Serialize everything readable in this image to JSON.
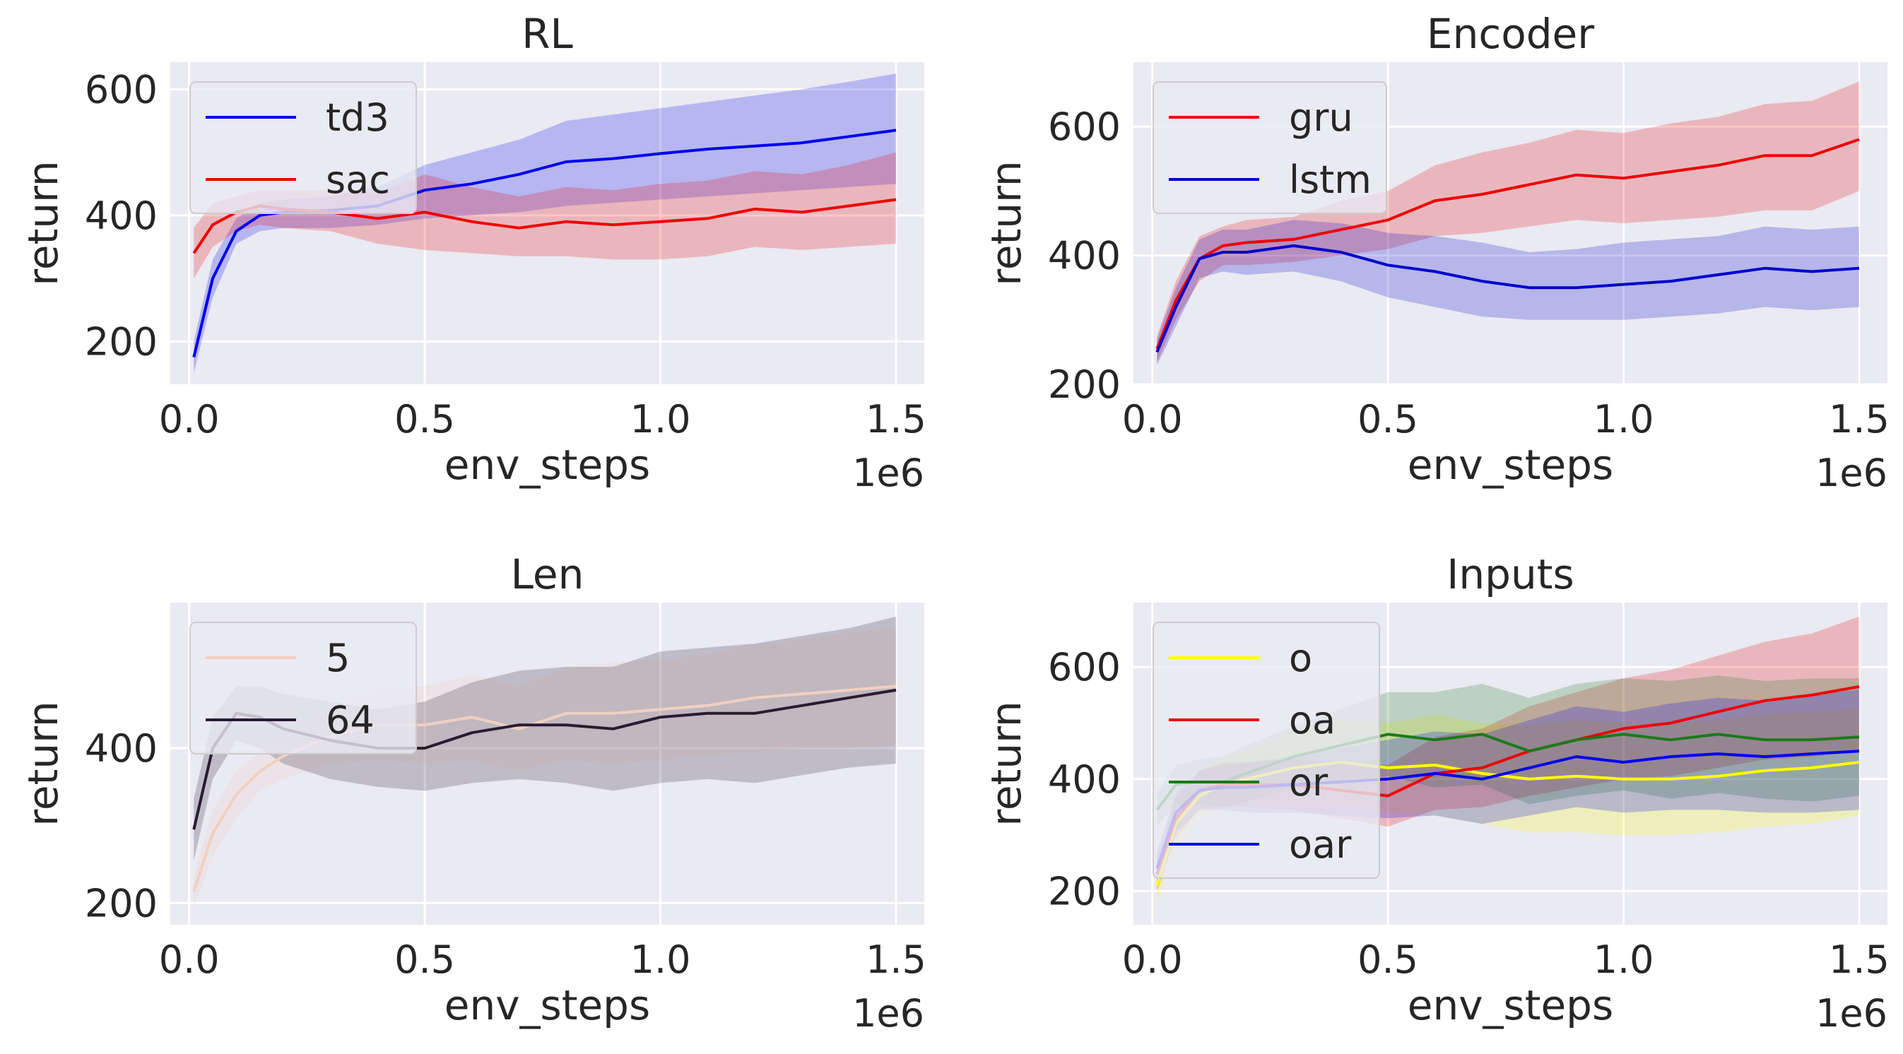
{
  "chart_data": [
    {
      "type": "line",
      "title": "RL",
      "xlabel": "env_steps",
      "ylabel": "return",
      "offset_label": "1e6",
      "xlim": [
        -0.04,
        1.56
      ],
      "ylim": [
        132,
        643
      ],
      "xticks": [
        0.0,
        0.5,
        1.0,
        1.5
      ],
      "xtick_labels": [
        "0.0",
        "0.5",
        "1.0",
        "1.5"
      ],
      "yticks": [
        200,
        400,
        600
      ],
      "ytick_labels": [
        "200",
        "400",
        "600"
      ],
      "legend_loc": "upper-left",
      "x": [
        0.01,
        0.05,
        0.1,
        0.15,
        0.2,
        0.3,
        0.4,
        0.5,
        0.6,
        0.7,
        0.8,
        0.9,
        1.0,
        1.1,
        1.2,
        1.3,
        1.4,
        1.5
      ],
      "series": [
        {
          "name": "td3",
          "color": "#0000ee",
          "values": [
            175,
            300,
            375,
            400,
            405,
            408,
            415,
            440,
            450,
            465,
            485,
            490,
            498,
            505,
            510,
            515,
            525,
            535
          ],
          "lower": [
            150,
            270,
            355,
            375,
            380,
            380,
            385,
            395,
            400,
            405,
            415,
            420,
            425,
            430,
            435,
            440,
            445,
            450
          ],
          "upper": [
            200,
            330,
            395,
            420,
            425,
            430,
            445,
            480,
            500,
            520,
            550,
            560,
            570,
            580,
            590,
            600,
            612,
            625
          ]
        },
        {
          "name": "sac",
          "color": "#ee0000",
          "values": [
            340,
            385,
            405,
            415,
            410,
            405,
            395,
            405,
            390,
            380,
            390,
            385,
            390,
            395,
            410,
            405,
            415,
            425
          ],
          "lower": [
            300,
            350,
            375,
            385,
            380,
            375,
            355,
            345,
            340,
            335,
            335,
            330,
            330,
            335,
            350,
            345,
            350,
            355
          ],
          "upper": [
            380,
            420,
            430,
            440,
            440,
            440,
            435,
            465,
            445,
            430,
            445,
            440,
            450,
            455,
            470,
            465,
            480,
            500
          ]
        }
      ]
    },
    {
      "type": "line",
      "title": "Encoder",
      "xlabel": "env_steps",
      "ylabel": "return",
      "offset_label": "1e6",
      "xlim": [
        -0.04,
        1.56
      ],
      "ylim": [
        200,
        700
      ],
      "xticks": [
        0.0,
        0.5,
        1.0,
        1.5
      ],
      "xtick_labels": [
        "0.0",
        "0.5",
        "1.0",
        "1.5"
      ],
      "yticks": [
        200,
        400,
        600
      ],
      "ytick_labels": [
        "200",
        "400",
        "600"
      ],
      "legend_loc": "upper-left",
      "x": [
        0.01,
        0.05,
        0.1,
        0.15,
        0.2,
        0.3,
        0.4,
        0.5,
        0.6,
        0.7,
        0.8,
        0.9,
        1.0,
        1.1,
        1.2,
        1.3,
        1.4,
        1.5
      ],
      "series": [
        {
          "name": "gru",
          "color": "#ee0000",
          "values": [
            255,
            330,
            395,
            415,
            420,
            425,
            440,
            455,
            485,
            495,
            510,
            525,
            520,
            530,
            540,
            555,
            555,
            580
          ],
          "lower": [
            235,
            300,
            360,
            385,
            385,
            390,
            400,
            410,
            430,
            435,
            445,
            455,
            450,
            455,
            460,
            470,
            470,
            500
          ],
          "upper": [
            275,
            360,
            430,
            445,
            455,
            460,
            485,
            500,
            540,
            560,
            575,
            595,
            590,
            605,
            615,
            635,
            640,
            670
          ]
        },
        {
          "name": "lstm",
          "color": "#0000cc",
          "values": [
            250,
            320,
            395,
            405,
            405,
            415,
            405,
            385,
            375,
            360,
            350,
            350,
            355,
            360,
            370,
            380,
            375,
            380
          ],
          "lower": [
            230,
            290,
            365,
            375,
            370,
            375,
            360,
            335,
            320,
            305,
            300,
            300,
            300,
            305,
            310,
            320,
            315,
            320
          ],
          "upper": [
            270,
            350,
            425,
            440,
            440,
            455,
            450,
            435,
            430,
            420,
            405,
            410,
            420,
            425,
            430,
            445,
            440,
            445
          ]
        }
      ]
    },
    {
      "type": "line",
      "title": "Len",
      "xlabel": "env_steps",
      "ylabel": "return",
      "offset_label": "1e6",
      "xlim": [
        -0.04,
        1.56
      ],
      "ylim": [
        172,
        588
      ],
      "xticks": [
        0.0,
        0.5,
        1.0,
        1.5
      ],
      "xtick_labels": [
        "0.0",
        "0.5",
        "1.0",
        "1.5"
      ],
      "yticks": [
        200,
        400
      ],
      "ytick_labels": [
        "200",
        "400"
      ],
      "legend_loc": "upper-left",
      "x": [
        0.01,
        0.05,
        0.1,
        0.15,
        0.2,
        0.3,
        0.4,
        0.5,
        0.6,
        0.7,
        0.8,
        0.9,
        1.0,
        1.1,
        1.2,
        1.3,
        1.4,
        1.5
      ],
      "series": [
        {
          "name": "5",
          "color": "#f2cfc0",
          "values": [
            215,
            290,
            340,
            370,
            390,
            415,
            430,
            430,
            440,
            425,
            445,
            445,
            450,
            455,
            465,
            470,
            475,
            480
          ],
          "lower": [
            195,
            260,
            310,
            345,
            360,
            380,
            385,
            380,
            385,
            370,
            385,
            380,
            385,
            390,
            395,
            400,
            400,
            405
          ],
          "upper": [
            235,
            320,
            370,
            395,
            420,
            450,
            475,
            480,
            495,
            480,
            505,
            510,
            515,
            520,
            535,
            540,
            550,
            555
          ]
        },
        {
          "name": "64",
          "color": "#2a1b32",
          "values": [
            295,
            400,
            445,
            440,
            425,
            410,
            400,
            400,
            420,
            430,
            430,
            425,
            440,
            445,
            445,
            455,
            465,
            475
          ],
          "lower": [
            255,
            360,
            410,
            400,
            380,
            360,
            350,
            345,
            355,
            360,
            355,
            345,
            355,
            360,
            355,
            365,
            375,
            380
          ],
          "upper": [
            335,
            440,
            480,
            480,
            470,
            460,
            450,
            460,
            485,
            500,
            505,
            505,
            525,
            530,
            535,
            545,
            555,
            570
          ]
        }
      ]
    },
    {
      "type": "line",
      "title": "Inputs",
      "xlabel": "env_steps",
      "ylabel": "return",
      "offset_label": "1e6",
      "xlim": [
        -0.04,
        1.56
      ],
      "ylim": [
        140,
        715
      ],
      "xticks": [
        0.0,
        0.5,
        1.0,
        1.5
      ],
      "xtick_labels": [
        "0.0",
        "0.5",
        "1.0",
        "1.5"
      ],
      "yticks": [
        200,
        400,
        600
      ],
      "ytick_labels": [
        "200",
        "400",
        "600"
      ],
      "legend_loc": "upper-left",
      "x": [
        0.01,
        0.05,
        0.1,
        0.15,
        0.2,
        0.3,
        0.4,
        0.5,
        0.6,
        0.7,
        0.8,
        0.9,
        1.0,
        1.1,
        1.2,
        1.3,
        1.4,
        1.5
      ],
      "series": [
        {
          "name": "o",
          "color": "#ffff00",
          "values": [
            210,
            320,
            370,
            390,
            400,
            420,
            430,
            420,
            425,
            410,
            400,
            405,
            400,
            400,
            405,
            415,
            420,
            430
          ],
          "lower": [
            180,
            280,
            330,
            345,
            350,
            355,
            355,
            340,
            335,
            320,
            305,
            305,
            300,
            300,
            305,
            315,
            320,
            335
          ],
          "upper": [
            240,
            360,
            410,
            435,
            450,
            485,
            505,
            500,
            515,
            500,
            495,
            505,
            500,
            500,
            505,
            515,
            520,
            525
          ]
        },
        {
          "name": "oa",
          "color": "#ee0000",
          "values": [
            230,
            330,
            380,
            390,
            390,
            390,
            380,
            370,
            410,
            420,
            450,
            470,
            490,
            500,
            520,
            540,
            550,
            565
          ],
          "lower": [
            200,
            295,
            345,
            350,
            350,
            345,
            330,
            315,
            345,
            350,
            370,
            385,
            400,
            405,
            420,
            435,
            440,
            450
          ],
          "upper": [
            260,
            365,
            415,
            430,
            430,
            435,
            430,
            425,
            475,
            490,
            530,
            555,
            580,
            595,
            620,
            645,
            660,
            690
          ]
        },
        {
          "name": "or",
          "color": "#1a7a1a",
          "values": [
            345,
            390,
            395,
            395,
            410,
            440,
            460,
            480,
            470,
            480,
            450,
            470,
            480,
            470,
            480,
            470,
            470,
            475
          ],
          "lower": [
            315,
            355,
            355,
            350,
            360,
            385,
            395,
            405,
            385,
            390,
            355,
            370,
            380,
            365,
            375,
            365,
            360,
            370
          ],
          "upper": [
            375,
            425,
            435,
            440,
            460,
            495,
            525,
            555,
            555,
            570,
            545,
            570,
            580,
            575,
            585,
            575,
            580,
            580
          ]
        },
        {
          "name": "oar",
          "color": "#0000ee",
          "values": [
            240,
            340,
            380,
            385,
            385,
            390,
            395,
            400,
            410,
            400,
            420,
            440,
            430,
            440,
            445,
            440,
            445,
            450
          ],
          "lower": [
            210,
            305,
            345,
            345,
            340,
            340,
            335,
            330,
            335,
            320,
            335,
            350,
            340,
            345,
            345,
            340,
            340,
            345
          ],
          "upper": [
            270,
            375,
            415,
            425,
            430,
            440,
            455,
            470,
            485,
            480,
            505,
            530,
            520,
            535,
            545,
            540,
            550,
            560
          ]
        }
      ]
    }
  ]
}
